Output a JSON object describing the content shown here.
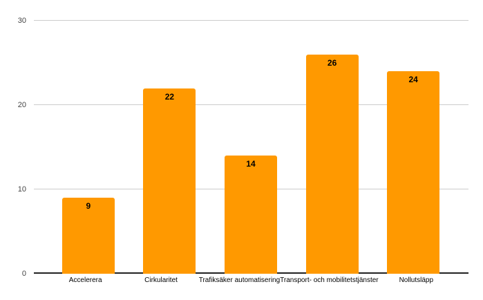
{
  "chart_data": {
    "type": "bar",
    "title": "",
    "xlabel": "",
    "ylabel": "",
    "categories": [
      "Accelerera",
      "Cirkularitet",
      "Trafiksäker automatisering",
      "Transport- och mobilitetstjänster",
      "Nollutsläpp"
    ],
    "values": [
      9,
      22,
      14,
      26,
      24
    ],
    "ylim": [
      0,
      30
    ],
    "yticks": [
      0,
      10,
      20,
      30
    ],
    "grid": true,
    "legend": "none",
    "colors": {
      "bar": "#FF9900",
      "value_label": "#000000",
      "axis_label": "#444444",
      "category_label": "#000000",
      "gridline": "#cccccc",
      "baseline": "#212121",
      "background": "#ffffff"
    }
  }
}
